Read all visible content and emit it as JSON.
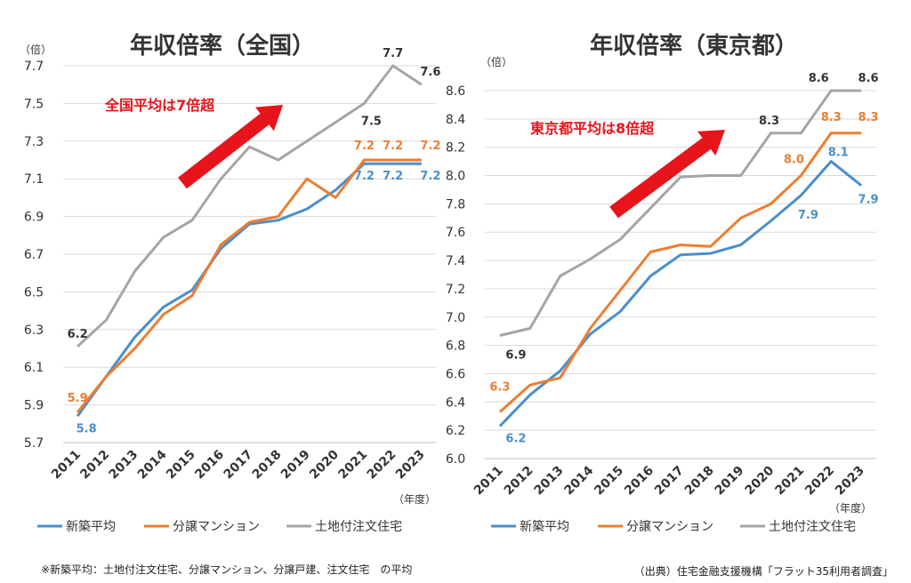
{
  "footnote": "※新築平均：土地付注文住宅、分譲マンション、分譲戸建、注文住宅　の平均",
  "source": "（出典）住宅金融支援機構「フラット35利用者調査」",
  "colors": {
    "new_average": "#4a8fcb",
    "condo": "#ed7d31",
    "land_house": "#a5a5a5",
    "arrow": "#e8141b",
    "annotation": "#e8141b"
  },
  "chart_data": [
    {
      "type": "line",
      "title": "年収倍率（全国）",
      "ylabel": "（倍）",
      "xlabel": "（年度）",
      "x": [
        "2011",
        "2012",
        "2013",
        "2014",
        "2015",
        "2016",
        "2017",
        "2018",
        "2019",
        "2020",
        "2021",
        "2022",
        "2023"
      ],
      "ylim": [
        5.7,
        7.7
      ],
      "yticks": [
        "5.7",
        "5.9",
        "6.1",
        "6.3",
        "6.5",
        "6.7",
        "6.9",
        "7.1",
        "7.3",
        "7.5",
        "7.7"
      ],
      "grid": true,
      "legend": "bottom",
      "annotation": "全国平均は7倍超",
      "series": [
        {
          "name": "新築平均",
          "color": "#4a8fcb",
          "values": [
            5.84,
            6.05,
            6.26,
            6.42,
            6.51,
            6.73,
            6.86,
            6.88,
            6.94,
            7.04,
            7.18,
            7.18,
            7.18
          ],
          "labels": [
            {
              "i": 0,
              "text": "5.8"
            },
            {
              "i": 10,
              "text": "7.2"
            },
            {
              "i": 11,
              "text": "7.2"
            },
            {
              "i": 12,
              "text": "7.2"
            }
          ]
        },
        {
          "name": "分譲マンション",
          "color": "#ed7d31",
          "values": [
            5.86,
            6.05,
            6.2,
            6.38,
            6.48,
            6.75,
            6.87,
            6.9,
            7.1,
            7.0,
            7.2,
            7.2,
            7.2
          ],
          "labels": [
            {
              "i": 0,
              "text": "5.9"
            },
            {
              "i": 10,
              "text": "7.2"
            },
            {
              "i": 11,
              "text": "7.2"
            },
            {
              "i": 12,
              "text": "7.2"
            }
          ]
        },
        {
          "name": "土地付注文住宅",
          "color": "#a5a5a5",
          "values": [
            6.21,
            6.35,
            6.61,
            6.79,
            6.88,
            7.1,
            7.27,
            7.2,
            7.3,
            7.4,
            7.5,
            7.7,
            7.6
          ],
          "labels": [
            {
              "i": 0,
              "text": "6.2"
            },
            {
              "i": 10,
              "text": "7.5"
            },
            {
              "i": 11,
              "text": "7.7"
            },
            {
              "i": 12,
              "text": "7.6"
            }
          ]
        }
      ]
    },
    {
      "type": "line",
      "title": "年収倍率（東京都）",
      "ylabel": "（倍）",
      "xlabel": "（年度）",
      "x": [
        "2011",
        "2012",
        "2013",
        "2014",
        "2015",
        "2016",
        "2017",
        "2018",
        "2019",
        "2020",
        "2021",
        "2022",
        "2023"
      ],
      "ylim": [
        6.0,
        8.6
      ],
      "yticks": [
        "6.0",
        "6.2",
        "6.4",
        "6.6",
        "6.8",
        "7.0",
        "7.2",
        "7.4",
        "7.6",
        "7.8",
        "8.0",
        "8.2",
        "8.4",
        "8.6"
      ],
      "grid": true,
      "legend": "bottom",
      "annotation": "東京都平均は8倍超",
      "series": [
        {
          "name": "新築平均",
          "color": "#4a8fcb",
          "values": [
            6.23,
            6.45,
            6.62,
            6.88,
            7.04,
            7.29,
            7.44,
            7.45,
            7.51,
            7.68,
            7.86,
            8.1,
            7.93
          ],
          "labels": [
            {
              "i": 0,
              "text": "6.2"
            },
            {
              "i": 10,
              "text": "7.9"
            },
            {
              "i": 11,
              "text": "8.1"
            },
            {
              "i": 12,
              "text": "7.9"
            }
          ]
        },
        {
          "name": "分譲マンション",
          "color": "#ed7d31",
          "values": [
            6.33,
            6.52,
            6.57,
            6.92,
            7.19,
            7.46,
            7.51,
            7.5,
            7.7,
            7.8,
            8.0,
            8.3,
            8.3
          ],
          "labels": [
            {
              "i": 0,
              "text": "6.3"
            },
            {
              "i": 10,
              "text": "8.0"
            },
            {
              "i": 11,
              "text": "8.3"
            },
            {
              "i": 12,
              "text": "8.3"
            }
          ]
        },
        {
          "name": "土地付注文住宅",
          "color": "#a5a5a5",
          "values": [
            6.87,
            6.92,
            7.29,
            7.41,
            7.55,
            7.77,
            7.99,
            8.0,
            8.0,
            8.3,
            8.3,
            8.6,
            8.6
          ],
          "labels": [
            {
              "i": 0,
              "text": "6.9"
            },
            {
              "i": 9,
              "text": "8.3"
            },
            {
              "i": 11,
              "text": "8.6"
            },
            {
              "i": 12,
              "text": "8.6"
            }
          ]
        }
      ]
    }
  ]
}
